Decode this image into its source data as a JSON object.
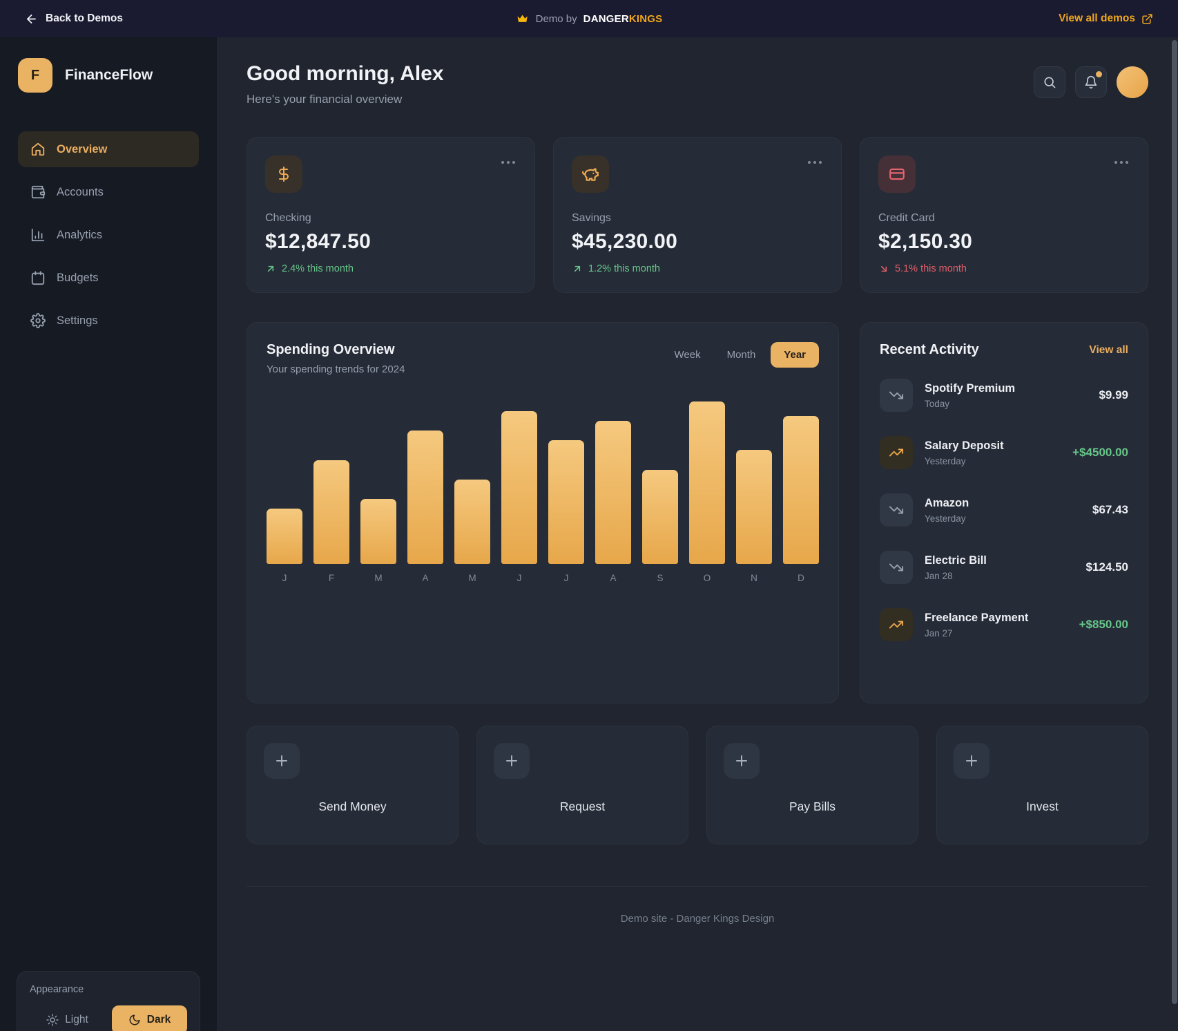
{
  "top_bar": {
    "back_label": "Back to Demos",
    "demo_prefix": "Demo by",
    "brand_danger": "DANGER",
    "brand_kings": "KINGS",
    "view_all_label": "View all demos"
  },
  "sidebar": {
    "logo_letter": "F",
    "app_name": "FinanceFlow",
    "items": [
      {
        "label": "Overview",
        "icon": "home-icon",
        "active": true
      },
      {
        "label": "Accounts",
        "icon": "wallet-icon",
        "active": false
      },
      {
        "label": "Analytics",
        "icon": "bar-chart-icon",
        "active": false
      },
      {
        "label": "Budgets",
        "icon": "calendar-icon",
        "active": false
      },
      {
        "label": "Settings",
        "icon": "gear-icon",
        "active": false
      }
    ],
    "appearance": {
      "title": "Appearance",
      "options": [
        {
          "label": "Light",
          "icon": "sun-icon"
        },
        {
          "label": "Dark",
          "icon": "moon-icon"
        }
      ],
      "active": "Dark"
    }
  },
  "header": {
    "greeting": "Good morning, Alex",
    "subtitle": "Here's your financial overview",
    "icons": [
      "search-icon",
      "bell-icon"
    ],
    "has_notification_dot": true
  },
  "accounts": [
    {
      "name": "Checking",
      "balance": "$12,847.50",
      "change": "2.4% this month",
      "direction": "up",
      "icon": "dollar-icon",
      "icon_tone": "amber"
    },
    {
      "name": "Savings",
      "balance": "$45,230.00",
      "change": "1.2% this month",
      "direction": "up",
      "icon": "piggy-bank-icon",
      "icon_tone": "amber"
    },
    {
      "name": "Credit Card",
      "balance": "$2,150.30",
      "change": "5.1% this month",
      "direction": "down",
      "icon": "credit-card-icon",
      "icon_tone": "red"
    }
  ],
  "chart_data": {
    "type": "bar",
    "title": "Spending Overview",
    "subtitle": "Your spending trends for 2024",
    "categories": [
      "J",
      "F",
      "M",
      "A",
      "M",
      "J",
      "J",
      "A",
      "S",
      "O",
      "N",
      "D"
    ],
    "values": [
      34,
      64,
      40,
      82,
      52,
      94,
      76,
      88,
      58,
      100,
      70,
      91
    ],
    "value_note": "relative bar heights in % of max; no numeric axis shown",
    "range_options": [
      "Week",
      "Month",
      "Year"
    ],
    "selected_range": "Year",
    "bar_gradient": [
      "#f5c97f",
      "#e7a74a"
    ],
    "grid": false,
    "legend": false
  },
  "recent_activity": {
    "title": "Recent Activity",
    "view_all_label": "View all",
    "items": [
      {
        "name": "Spotify Premium",
        "date": "Today",
        "amount": "$9.99",
        "type": "expense"
      },
      {
        "name": "Salary Deposit",
        "date": "Yesterday",
        "amount": "+$4500.00",
        "type": "income"
      },
      {
        "name": "Amazon",
        "date": "Yesterday",
        "amount": "$67.43",
        "type": "expense"
      },
      {
        "name": "Electric Bill",
        "date": "Jan 28",
        "amount": "$124.50",
        "type": "expense"
      },
      {
        "name": "Freelance Payment",
        "date": "Jan 27",
        "amount": "+$850.00",
        "type": "income"
      }
    ]
  },
  "quick_actions": [
    {
      "label": "Send Money",
      "icon": "plus-icon"
    },
    {
      "label": "Request",
      "icon": "plus-icon"
    },
    {
      "label": "Pay Bills",
      "icon": "plus-icon"
    },
    {
      "label": "Invest",
      "icon": "plus-icon"
    }
  ],
  "footer": {
    "text": "Demo site - Danger Kings Design"
  },
  "colors": {
    "accent_amber": "#eab263",
    "gold": "#f0a71c",
    "positive_green": "#67c689",
    "negative_red": "#e25f68",
    "topbar_bg": "#1a1a31",
    "sidebar_bg": "#161a23",
    "page_bg": "#20252f",
    "card_bg": "#252b37"
  }
}
